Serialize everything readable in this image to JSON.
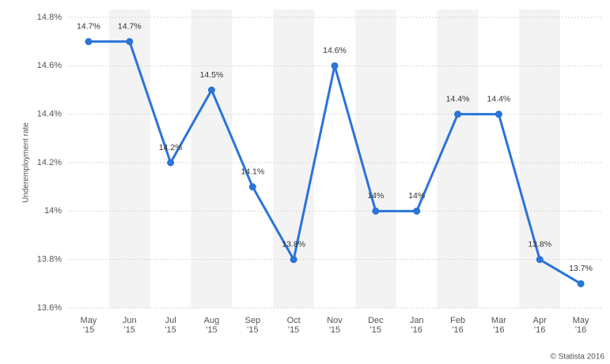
{
  "chart_data": {
    "type": "line",
    "y_axis_label": "Underemployment rate",
    "credit": "© Statista 2016",
    "categories": [
      "May '15",
      "Jun '15",
      "Jul '15",
      "Aug '15",
      "Sep '15",
      "Oct '15",
      "Nov '15",
      "Dec '15",
      "Jan '16",
      "Feb '16",
      "Mar '16",
      "Apr '16",
      "May '16"
    ],
    "series": [
      {
        "color": "#2b74d8",
        "values": [
          14.7,
          14.7,
          14.2,
          14.5,
          14.1,
          13.8,
          14.6,
          14.0,
          14.0,
          14.4,
          14.4,
          13.8,
          13.7
        ],
        "value_labels": [
          "14.7%",
          "14.7%",
          "14.2%",
          "14.5%",
          "14.1%",
          "13.8%",
          "14.6%",
          "14%",
          "14%",
          "14.4%",
          "14.4%",
          "13.8%",
          "13.7%"
        ]
      }
    ],
    "ylim": [
      13.6,
      14.8
    ],
    "yticks": [
      {
        "value": 13.6,
        "label": "13.6%"
      },
      {
        "value": 13.8,
        "label": "13.8%"
      },
      {
        "value": 14.0,
        "label": "14%"
      },
      {
        "value": 14.2,
        "label": "14.2%"
      },
      {
        "value": 14.4,
        "label": "14.4%"
      },
      {
        "value": 14.6,
        "label": "14.6%"
      },
      {
        "value": 14.8,
        "label": "14.8%"
      }
    ],
    "grid": true
  }
}
